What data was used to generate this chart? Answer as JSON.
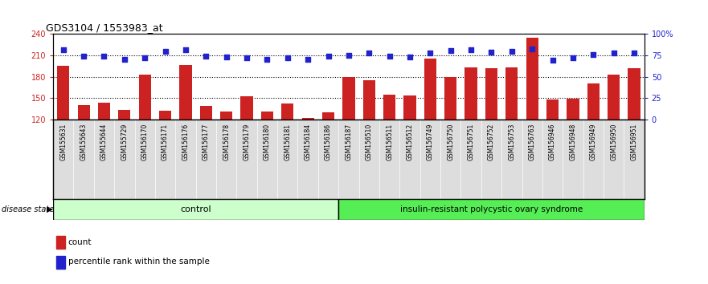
{
  "title": "GDS3104 / 1553983_at",
  "samples": [
    "GSM155631",
    "GSM155643",
    "GSM155644",
    "GSM155729",
    "GSM156170",
    "GSM156171",
    "GSM156176",
    "GSM156177",
    "GSM156178",
    "GSM156179",
    "GSM156180",
    "GSM156181",
    "GSM156184",
    "GSM156186",
    "GSM156187",
    "GSM156510",
    "GSM156511",
    "GSM156512",
    "GSM156749",
    "GSM156750",
    "GSM156751",
    "GSM156752",
    "GSM156753",
    "GSM156763",
    "GSM156946",
    "GSM156948",
    "GSM156949",
    "GSM156950",
    "GSM156951"
  ],
  "bar_values": [
    195,
    140,
    143,
    133,
    183,
    132,
    196,
    139,
    131,
    152,
    131,
    142,
    122,
    130,
    179,
    175,
    155,
    153,
    205,
    180,
    193,
    192,
    193,
    235,
    148,
    149,
    170,
    183,
    192
  ],
  "dot_values": [
    82,
    74,
    74,
    70,
    72,
    80,
    82,
    74,
    73,
    72,
    70,
    72,
    70,
    74,
    75,
    78,
    74,
    73,
    78,
    81,
    82,
    79,
    80,
    83,
    69,
    72,
    76,
    78,
    78
  ],
  "control_count": 14,
  "disease_count": 15,
  "bar_color": "#cc2222",
  "dot_color": "#2222cc",
  "ylim_left": [
    120,
    240
  ],
  "ylim_right": [
    0,
    100
  ],
  "yticks_left": [
    120,
    150,
    180,
    210,
    240
  ],
  "yticks_right": [
    0,
    25,
    50,
    75,
    100
  ],
  "hlines": [
    150,
    180,
    210
  ],
  "control_label": "control",
  "disease_label": "insulin-resistant polycystic ovary syndrome",
  "disease_state_label": "disease state",
  "legend_bar": "count",
  "legend_dot": "percentile rank within the sample",
  "bar_width": 0.6,
  "control_bg": "#ccffcc",
  "disease_bg": "#55ee55",
  "xticklabel_bg": "#dddddd"
}
